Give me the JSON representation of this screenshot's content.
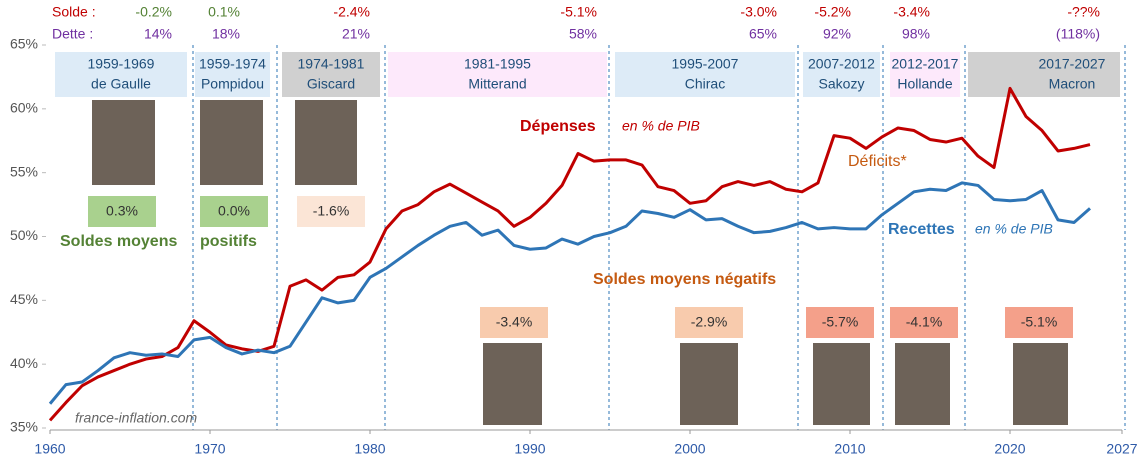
{
  "chart_data": {
    "type": "line",
    "x": [
      1960,
      1961,
      1962,
      1963,
      1964,
      1965,
      1966,
      1967,
      1968,
      1969,
      1970,
      1971,
      1972,
      1973,
      1974,
      1975,
      1976,
      1977,
      1978,
      1979,
      1980,
      1981,
      1982,
      1983,
      1984,
      1985,
      1986,
      1987,
      1988,
      1989,
      1990,
      1991,
      1992,
      1993,
      1994,
      1995,
      1996,
      1997,
      1998,
      1999,
      2000,
      2001,
      2002,
      2003,
      2004,
      2005,
      2006,
      2007,
      2008,
      2009,
      2010,
      2011,
      2012,
      2013,
      2014,
      2015,
      2016,
      2017,
      2018,
      2019,
      2020,
      2021,
      2022,
      2023,
      2024,
      2025
    ],
    "series": [
      {
        "name": "Dépenses",
        "note": "en % de PIB",
        "color": "#c00000",
        "values": [
          35.6,
          37.0,
          38.3,
          39.0,
          39.5,
          40.0,
          40.4,
          40.6,
          41.3,
          43.4,
          42.5,
          41.5,
          41.2,
          41.0,
          41.4,
          46.1,
          46.6,
          45.8,
          46.8,
          47.0,
          48.0,
          50.6,
          52.0,
          52.5,
          53.5,
          54.1,
          53.4,
          52.7,
          52.0,
          50.8,
          51.5,
          52.6,
          54.0,
          56.5,
          55.9,
          56.0,
          56.0,
          55.6,
          53.9,
          53.6,
          52.6,
          52.8,
          53.9,
          54.3,
          54.0,
          54.3,
          53.7,
          53.5,
          54.2,
          57.9,
          57.7,
          56.9,
          57.8,
          58.5,
          58.3,
          57.6,
          57.4,
          57.7,
          56.3,
          55.4,
          61.6,
          59.4,
          58.3,
          56.7,
          56.9,
          57.2
        ]
      },
      {
        "name": "Recettes",
        "note": "en % de PIB",
        "color": "#2e75b6",
        "values": [
          36.9,
          38.4,
          38.6,
          39.5,
          40.5,
          40.9,
          40.7,
          40.8,
          40.6,
          41.9,
          42.1,
          41.3,
          40.8,
          41.1,
          40.9,
          41.4,
          43.3,
          45.2,
          44.8,
          45.0,
          46.8,
          47.5,
          48.4,
          49.3,
          50.1,
          50.8,
          51.1,
          50.1,
          50.5,
          49.3,
          49.0,
          49.1,
          49.8,
          49.4,
          50.0,
          50.3,
          50.8,
          52.0,
          51.8,
          51.5,
          52.1,
          51.3,
          51.4,
          50.8,
          50.3,
          50.4,
          50.7,
          51.1,
          50.6,
          50.7,
          50.6,
          50.6,
          51.7,
          52.6,
          53.5,
          53.7,
          53.6,
          54.2,
          54.0,
          52.9,
          52.8,
          52.9,
          53.6,
          51.3,
          51.1,
          52.2
        ]
      }
    ],
    "xlim": [
      1960,
      2027
    ],
    "xticks": [
      1960,
      1970,
      1980,
      1990,
      2000,
      2010,
      2020,
      2027
    ],
    "ylim": [
      35,
      65
    ],
    "yticks": [
      {
        "value": 35,
        "label": "35%"
      },
      {
        "value": 40,
        "label": "40%"
      },
      {
        "value": 45,
        "label": "45%"
      },
      {
        "value": 50,
        "label": "50%"
      },
      {
        "value": 55,
        "label": "55%"
      },
      {
        "value": 60,
        "label": "60%"
      },
      {
        "value": 65,
        "label": "65%"
      }
    ],
    "row_labels": {
      "solde": "Solde :",
      "dette": "Dette :"
    },
    "periods": [
      {
        "years": "1959-1969",
        "president": "de Gaulle",
        "solde": "-0.2%",
        "solde_color": "#548235",
        "dette": "14%",
        "box_color": "#ddebf7",
        "average": "0.3%",
        "average_color": "#a9d18e"
      },
      {
        "years": "1959-1974",
        "president": "Pompidou",
        "solde": "0.1%",
        "solde_color": "#548235",
        "dette": "18%",
        "box_color": "#ddebf7",
        "average": "0.0%",
        "average_color": "#a9d18e"
      },
      {
        "years": "1974-1981",
        "president": "Giscard",
        "solde": "-2.4%",
        "solde_color": "#c00000",
        "dette": "21%",
        "box_color": "#d0d0d0",
        "average": "-1.6%",
        "average_color": "#fbe5d6"
      },
      {
        "years": "1981-1995",
        "president": "Mitterand",
        "solde": "-5.1%",
        "solde_color": "#c00000",
        "dette": "58%",
        "box_color": "#fde9fb",
        "average": "-3.4%",
        "average_color": "#f8cbad"
      },
      {
        "years": "1995-2007",
        "president": "Chirac",
        "solde": "-3.0%",
        "solde_color": "#c00000",
        "dette": "65%",
        "box_color": "#ddebf7",
        "average": "-2.9%",
        "average_color": "#f8cbad"
      },
      {
        "years": "2007-2012",
        "president": "Sakozy",
        "solde": "-5.2%",
        "solde_color": "#c00000",
        "dette": "92%",
        "box_color": "#ddebf7",
        "average": "-5.7%",
        "average_color": "#f4a08a"
      },
      {
        "years": "2012-2017",
        "president": "Hollande",
        "solde": "-3.4%",
        "solde_color": "#c00000",
        "dette": "98%",
        "box_color": "#fde9fb",
        "average": "-4.1%",
        "average_color": "#f4a08a"
      },
      {
        "years": "2017-2027",
        "president": "Macron",
        "solde": "-??%",
        "solde_color": "#c00000",
        "dette": "(118%)",
        "box_color": "#d0d0d0",
        "average": "-5.1%",
        "average_color": "#f4a08a"
      }
    ],
    "labels": {
      "positive_1": "Soldes moyens",
      "positive_2": "positifs",
      "negative": "Soldes moyens négatifs",
      "deficits": "Déficits*",
      "source": "france-inflation.com"
    }
  }
}
